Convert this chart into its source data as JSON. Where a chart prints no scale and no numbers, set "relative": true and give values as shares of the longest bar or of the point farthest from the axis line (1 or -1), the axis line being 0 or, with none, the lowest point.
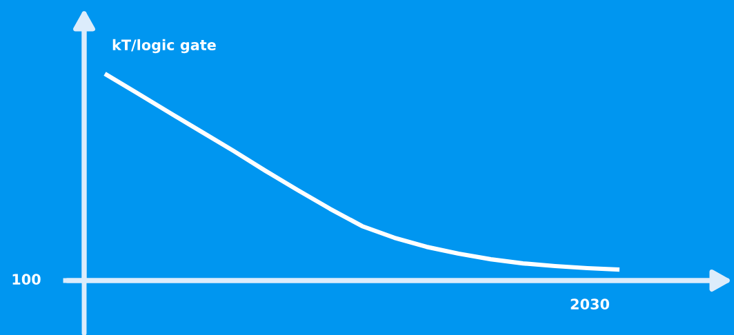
{
  "chart_data": {
    "type": "line",
    "relative": true,
    "ylabel": "kT/logic gate",
    "categories": [
      null,
      null,
      null,
      null,
      null,
      null,
      null,
      null,
      null,
      null,
      null,
      null,
      null,
      null,
      null,
      null,
      null
    ],
    "series": [
      {
        "color": "#ffffff",
        "values": [
          1,
          0.907,
          0.813,
          0.72,
          0.627,
          0.53,
          0.437,
          0.347,
          0.263,
          0.207,
          0.163,
          0.13,
          0.103,
          0.083,
          0.07,
          0.06,
          0.053
        ]
      }
    ],
    "annotations": [
      "100",
      "2030"
    ],
    "line_style": "solid"
  }
}
